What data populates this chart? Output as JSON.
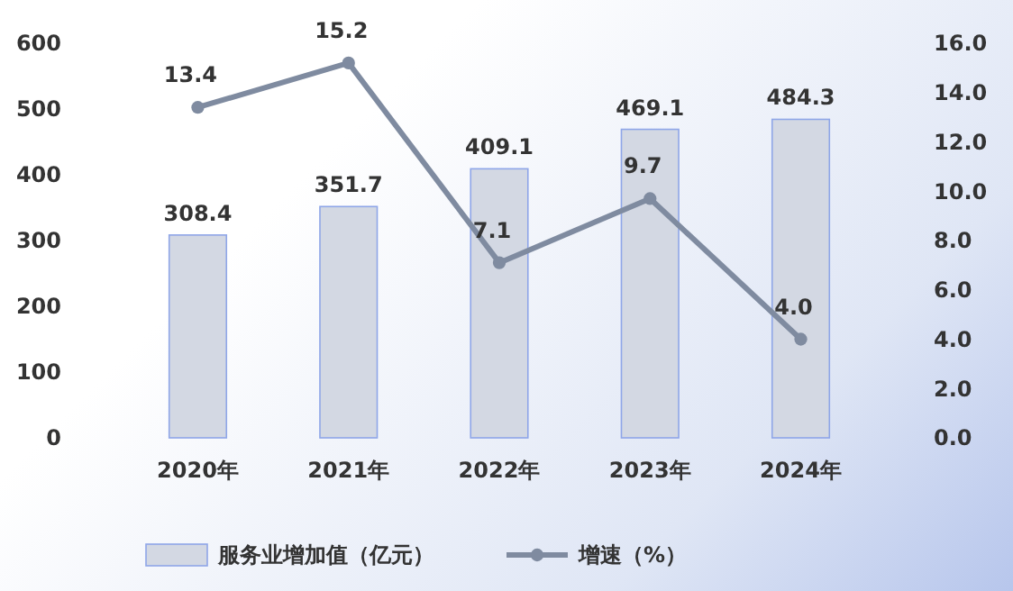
{
  "chart_data": {
    "type": "bar",
    "categories": [
      "2020年",
      "2021年",
      "2022年",
      "2023年",
      "2024年"
    ],
    "series": [
      {
        "name": "服务业增加值（亿元）",
        "color": "#d3d8e3",
        "values": [
          308.4,
          351.7,
          409.1,
          469.1,
          484.3
        ],
        "value_labels": [
          "308.4",
          "351.7",
          "409.1",
          "469.1",
          "484.3"
        ]
      },
      {
        "name": "增速（%）",
        "type": "line",
        "axis": "y2",
        "color": "#7f8ba0",
        "values": [
          13.4,
          15.2,
          7.1,
          9.7,
          4.0
        ],
        "value_labels": [
          "13.4",
          "15.2",
          "7.1",
          "9.7",
          "4.0"
        ]
      }
    ],
    "ylim": [
      0,
      600
    ],
    "yticks": [
      0,
      100,
      200,
      300,
      400,
      500,
      600
    ],
    "y2lim": [
      0,
      16
    ],
    "y2ticks": [
      {
        "value": 0,
        "label": "0.0"
      },
      {
        "value": 2,
        "label": "2.0"
      },
      {
        "value": 4,
        "label": "4.0"
      },
      {
        "value": 6,
        "label": "6.0"
      },
      {
        "value": 8,
        "label": "8.0"
      },
      {
        "value": 10,
        "label": "10.0"
      },
      {
        "value": 12,
        "label": "12.0"
      },
      {
        "value": 14,
        "label": "14.0"
      },
      {
        "value": 16,
        "label": "16.0"
      }
    ],
    "marker": "circle",
    "legend": "bottom",
    "grid": false
  }
}
